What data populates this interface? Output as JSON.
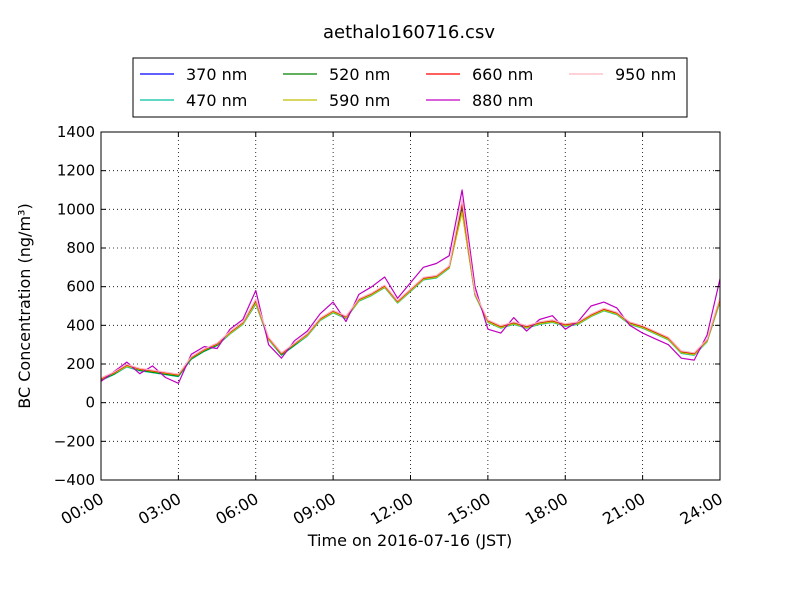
{
  "chart_data": {
    "type": "line",
    "title": "aethalo160716.csv",
    "xlabel": "Time on 2016-07-16 (JST)",
    "ylabel": "BC Concentration (ng/m³)",
    "xlim": [
      "2016-07-16 00:00",
      "2016-07-17 00:00"
    ],
    "ylim": [
      -400,
      1400
    ],
    "x_ticks": [
      "00:00",
      "03:00",
      "06:00",
      "09:00",
      "12:00",
      "15:00",
      "18:00",
      "21:00",
      "24:00"
    ],
    "y_ticks": [
      "−400",
      "−200",
      "0",
      "200",
      "400",
      "600",
      "800",
      "1000",
      "1200",
      "1400"
    ],
    "grid": true,
    "legend_position": "top",
    "x": [
      "00:00",
      "00:30",
      "01:00",
      "01:30",
      "02:00",
      "02:30",
      "03:00",
      "03:30",
      "04:00",
      "04:30",
      "05:00",
      "05:30",
      "06:00",
      "06:30",
      "07:00",
      "07:30",
      "08:00",
      "08:30",
      "09:00",
      "09:30",
      "10:00",
      "10:30",
      "11:00",
      "11:30",
      "12:00",
      "12:30",
      "13:00",
      "13:30",
      "14:00",
      "14:30",
      "15:00",
      "15:30",
      "16:00",
      "16:30",
      "17:00",
      "17:30",
      "18:00",
      "18:30",
      "19:00",
      "19:30",
      "20:00",
      "20:30",
      "21:00",
      "21:30",
      "22:00",
      "22:30",
      "23:00",
      "23:30",
      "24:00"
    ],
    "series": [
      {
        "name": "370 nm",
        "color": "#0000ff",
        "values": [
          120,
          150,
          190,
          170,
          160,
          150,
          140,
          230,
          270,
          300,
          360,
          410,
          520,
          330,
          250,
          300,
          350,
          430,
          470,
          440,
          530,
          560,
          600,
          520,
          580,
          640,
          650,
          700,
          1000,
          560,
          420,
          390,
          410,
          390,
          410,
          420,
          400,
          410,
          450,
          480,
          460,
          410,
          390,
          360,
          330,
          260,
          250,
          320,
          530
        ]
      },
      {
        "name": "470 nm",
        "color": "#00c0a0",
        "values": [
          115,
          145,
          185,
          165,
          155,
          145,
          135,
          225,
          265,
          295,
          355,
          405,
          510,
          325,
          245,
          295,
          345,
          425,
          465,
          435,
          525,
          555,
          595,
          515,
          575,
          635,
          645,
          695,
          990,
          555,
          415,
          385,
          405,
          385,
          405,
          415,
          395,
          405,
          445,
          475,
          455,
          405,
          385,
          355,
          325,
          255,
          245,
          315,
          520
        ]
      },
      {
        "name": "520 nm",
        "color": "#008000",
        "values": [
          118,
          148,
          192,
          168,
          158,
          148,
          138,
          228,
          268,
          298,
          362,
          412,
          525,
          332,
          248,
          298,
          352,
          432,
          472,
          442,
          532,
          562,
          602,
          522,
          582,
          642,
          652,
          702,
          1020,
          562,
          422,
          392,
          412,
          392,
          412,
          422,
          402,
          412,
          452,
          482,
          462,
          412,
          392,
          362,
          332,
          262,
          252,
          322,
          535
        ]
      },
      {
        "name": "590 nm",
        "color": "#c0c000",
        "values": [
          122,
          152,
          188,
          172,
          162,
          152,
          142,
          232,
          272,
          302,
          358,
          408,
          515,
          328,
          252,
          302,
          348,
          428,
          468,
          438,
          528,
          558,
          598,
          518,
          578,
          638,
          648,
          698,
          985,
          558,
          418,
          388,
          408,
          388,
          408,
          418,
          398,
          408,
          448,
          478,
          458,
          408,
          388,
          358,
          328,
          258,
          248,
          318,
          525
        ]
      },
      {
        "name": "660 nm",
        "color": "#ff0000",
        "values": [
          125,
          155,
          195,
          175,
          165,
          155,
          145,
          235,
          275,
          305,
          365,
          415,
          530,
          335,
          255,
          305,
          355,
          435,
          475,
          445,
          535,
          565,
          605,
          525,
          585,
          645,
          655,
          705,
          1030,
          565,
          425,
          395,
          415,
          395,
          415,
          425,
          405,
          415,
          455,
          485,
          465,
          415,
          395,
          365,
          335,
          265,
          255,
          325,
          540
        ]
      },
      {
        "name": "880 nm",
        "color": "#c000c0",
        "values": [
          110,
          160,
          210,
          150,
          190,
          130,
          100,
          250,
          290,
          280,
          380,
          430,
          580,
          300,
          230,
          320,
          370,
          460,
          520,
          420,
          560,
          600,
          650,
          540,
          620,
          700,
          720,
          760,
          1100,
          600,
          380,
          360,
          440,
          370,
          430,
          450,
          380,
          420,
          500,
          520,
          490,
          400,
          360,
          330,
          300,
          230,
          220,
          350,
          640
        ]
      },
      {
        "name": "950 nm",
        "color": "#ffb6c1",
        "values": [
          128,
          158,
          198,
          178,
          168,
          158,
          148,
          238,
          278,
          308,
          368,
          418,
          535,
          338,
          258,
          308,
          358,
          438,
          478,
          448,
          538,
          568,
          608,
          528,
          588,
          648,
          658,
          708,
          1050,
          568,
          428,
          398,
          418,
          398,
          418,
          428,
          408,
          418,
          458,
          488,
          468,
          418,
          398,
          368,
          338,
          268,
          258,
          328,
          545
        ]
      }
    ]
  }
}
